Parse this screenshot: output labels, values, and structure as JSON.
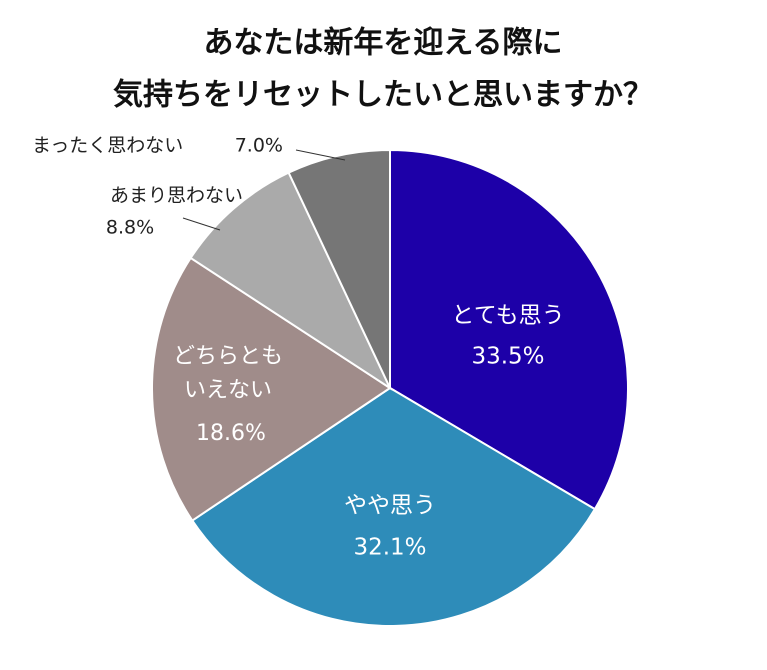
{
  "chart_data": {
    "type": "pie",
    "title": [
      "あなたは新年を迎える際に",
      "気持ちをリセットしたいと思いますか？"
    ],
    "categories": [
      "とても思う",
      "やや思う",
      "どちらともいえない",
      "あまり思わない",
      "まったく思わない"
    ],
    "values": [
      33.5,
      32.1,
      18.6,
      8.8,
      7.0
    ],
    "value_labels": [
      "33.5%",
      "32.1%",
      "18.6%",
      "8.8%",
      "7.0%"
    ],
    "colors": [
      "#1d00a8",
      "#2e8cb9",
      "#a08c8a",
      "#aaaaaa",
      "#767676"
    ]
  }
}
